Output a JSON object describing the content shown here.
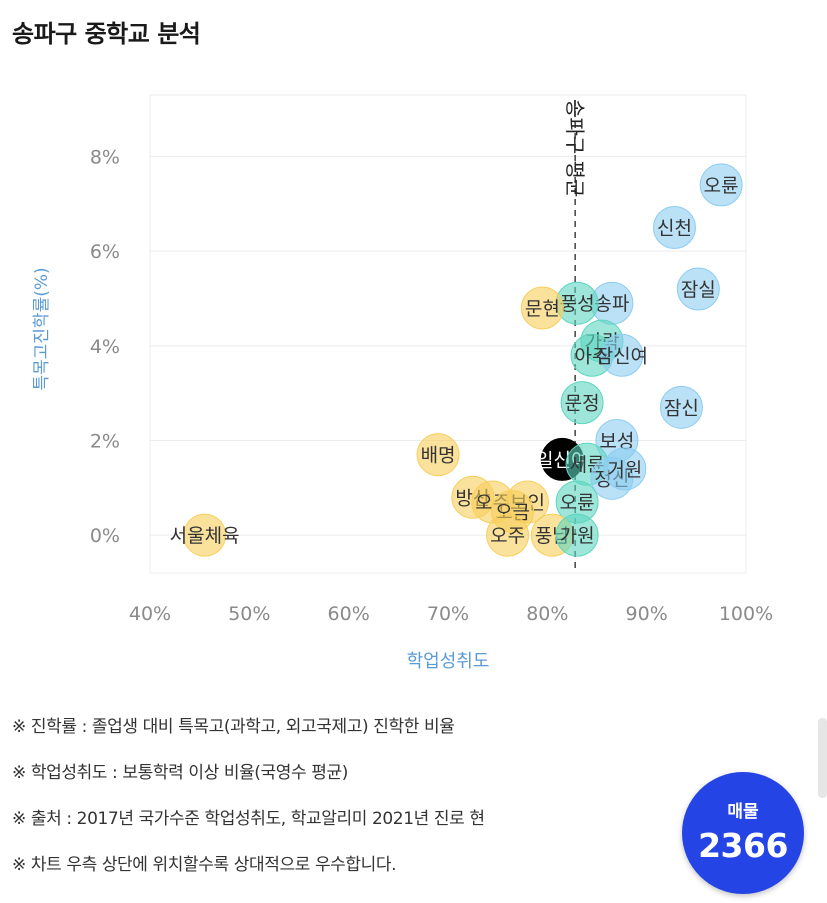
{
  "page": {
    "title": "송파구 중학교 분석"
  },
  "notes": [
    "※ 진학률 : 졸업생 대비 특목고(과학고, 외고국제고) 진학한 비율",
    "※ 학업성취도 : 보통학력 이상 비율(국영수 평균)",
    "※ 출처 : 2017년 국가수준 학업성취도, 학교알리미 2021년 진로 현",
    "※ 차트 우측 상단에 위치할수록 상대적으로 우수합니다."
  ],
  "badge": {
    "label": "매물",
    "count": "2366",
    "color": "#2544e6"
  },
  "chart_data": {
    "type": "scatter",
    "title": "",
    "xlabel": "학업성취도",
    "ylabel": "특목고진학률(%)",
    "xlim": [
      40,
      100
    ],
    "ylim": [
      -0.8,
      9.3
    ],
    "xticks": [
      40,
      50,
      60,
      70,
      80,
      90,
      100
    ],
    "yticks": [
      0,
      2,
      4,
      6,
      8
    ],
    "xtick_labels": [
      "40%",
      "50%",
      "60%",
      "70%",
      "80%",
      "90%",
      "100%"
    ],
    "ytick_labels": [
      "0%",
      "2%",
      "4%",
      "6%",
      "8%"
    ],
    "grid": true,
    "reference_line": {
      "x": 82.8,
      "label": "송파구 평균"
    },
    "colors": {
      "low": "#f7cf5c",
      "mid": "#5dd6bf",
      "high": "#8ccdf0",
      "highlight": "#000000",
      "axis_label": "#5b9bd5",
      "grid": "#ececec"
    },
    "points": [
      {
        "name": "오륜",
        "x": 97.5,
        "y": 7.4,
        "group": "high"
      },
      {
        "name": "신천",
        "x": 92.8,
        "y": 6.5,
        "group": "high"
      },
      {
        "name": "잠실",
        "x": 95.2,
        "y": 5.2,
        "group": "high"
      },
      {
        "name": "송파",
        "x": 86.5,
        "y": 4.9,
        "group": "high"
      },
      {
        "name": "풍성",
        "x": 83.0,
        "y": 4.9,
        "group": "mid"
      },
      {
        "name": "문현",
        "x": 79.5,
        "y": 4.8,
        "group": "low"
      },
      {
        "name": "가락",
        "x": 85.5,
        "y": 4.1,
        "group": "mid"
      },
      {
        "name": "아주",
        "x": 84.5,
        "y": 3.8,
        "group": "mid"
      },
      {
        "name": "잠신여",
        "x": 87.5,
        "y": 3.8,
        "group": "high"
      },
      {
        "name": "문정",
        "x": 83.5,
        "y": 2.8,
        "group": "mid"
      },
      {
        "name": "잠신",
        "x": 93.5,
        "y": 2.7,
        "group": "high"
      },
      {
        "name": "보성",
        "x": 87.0,
        "y": 2.0,
        "group": "high"
      },
      {
        "name": "배명",
        "x": 69.0,
        "y": 1.7,
        "group": "low"
      },
      {
        "name": "일신여",
        "x": 81.5,
        "y": 1.6,
        "group": "highlight"
      },
      {
        "name": "세륜",
        "x": 84.0,
        "y": 1.5,
        "group": "mid"
      },
      {
        "name": "정신",
        "x": 86.5,
        "y": 1.2,
        "group": "high"
      },
      {
        "name": "방산",
        "x": 72.5,
        "y": 0.8,
        "group": "low"
      },
      {
        "name": "오주",
        "x": 74.5,
        "y": 0.7,
        "group": "low"
      },
      {
        "name": "거원",
        "x": 87.8,
        "y": 1.4,
        "group": "high"
      },
      {
        "name": "보인",
        "x": 78.0,
        "y": 0.7,
        "group": "low"
      },
      {
        "name": "오금",
        "x": 76.5,
        "y": 0.5,
        "group": "low"
      },
      {
        "name": "오륜",
        "x": 83.0,
        "y": 0.7,
        "group": "mid"
      },
      {
        "name": "서울체육",
        "x": 45.5,
        "y": 0.0,
        "group": "low"
      },
      {
        "name": "오주",
        "x": 76.0,
        "y": 0.0,
        "group": "low"
      },
      {
        "name": "풍납",
        "x": 80.5,
        "y": 0.0,
        "group": "low"
      },
      {
        "name": "가원",
        "x": 83.0,
        "y": 0.0,
        "group": "mid"
      }
    ]
  }
}
